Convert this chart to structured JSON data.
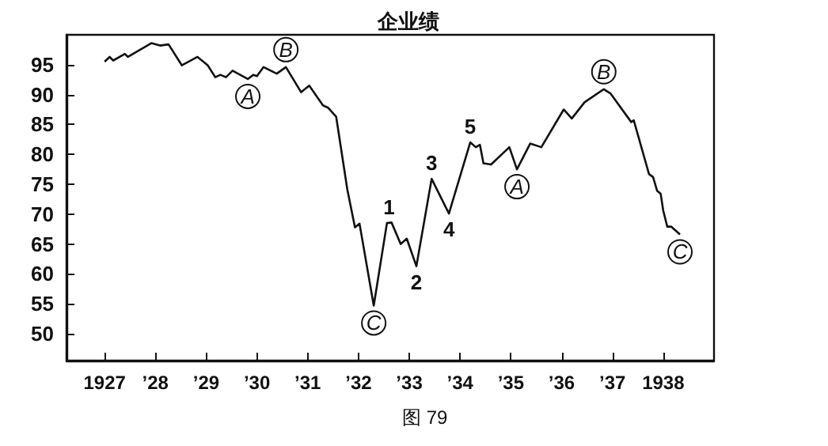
{
  "chart_data": {
    "type": "line",
    "title": "企业绩",
    "x": [
      1927.0,
      1927.1,
      1927.17,
      1927.4,
      1927.46,
      1927.92,
      1928.09,
      1928.26,
      1928.52,
      1928.83,
      1929.03,
      1929.18,
      1929.28,
      1929.39,
      1929.52,
      1929.82,
      1929.93,
      1930.0,
      1930.13,
      1930.39,
      1930.57,
      1930.87,
      1931.03,
      1931.3,
      1931.4,
      1931.56,
      1931.78,
      1931.93,
      1932.02,
      1932.3,
      1932.56,
      1932.65,
      1932.83,
      1932.95,
      1933.14,
      1933.44,
      1933.78,
      1934.2,
      1934.31,
      1934.39,
      1934.46,
      1934.61,
      1934.97,
      1935.12,
      1935.38,
      1935.6,
      1936.04,
      1936.2,
      1936.45,
      1936.83,
      1936.96,
      1937.37,
      1937.42,
      1937.72,
      1937.8,
      1937.88,
      1937.95,
      1938.0,
      1938.08,
      1938.16,
      1938.33
    ],
    "series": [
      {
        "color": "#111111",
        "values": [
          95.5,
          96.3,
          95.7,
          96.8,
          96.3,
          98.6,
          98.2,
          98.4,
          94.9,
          96.3,
          94.9,
          92.9,
          93.3,
          92.9,
          94.0,
          92.6,
          93.3,
          93.1,
          94.6,
          93.5,
          94.6,
          90.4,
          91.5,
          88.2,
          87.8,
          86.3,
          74.1,
          67.8,
          68.4,
          54.7,
          68.5,
          68.6,
          65.0,
          65.9,
          61.3,
          75.9,
          70.1,
          82.0,
          81.2,
          81.6,
          78.5,
          78.3,
          81.2,
          77.5,
          81.8,
          81.2,
          87.5,
          86.0,
          88.7,
          90.9,
          90.2,
          85.4,
          85.7,
          76.7,
          76.2,
          73.9,
          73.4,
          70.6,
          67.9,
          67.9,
          66.6
        ]
      }
    ],
    "xlim": [
      1926.25,
      1939
    ],
    "xticks": [
      1927,
      {
        "value": 1928,
        "label": "’28"
      },
      {
        "value": 1929,
        "label": "’29"
      },
      {
        "value": 1930,
        "label": "’30"
      },
      {
        "value": 1931,
        "label": "’31"
      },
      {
        "value": 1932,
        "label": "’32"
      },
      {
        "value": 1933,
        "label": "’33"
      },
      {
        "value": 1934,
        "label": "’34"
      },
      {
        "value": 1935,
        "label": "’35"
      },
      {
        "value": 1936,
        "label": "’36"
      },
      {
        "value": 1937,
        "label": "’37"
      },
      1938
    ],
    "ylim": [
      45.5,
      100
    ],
    "yticks": [
      50,
      55,
      60,
      65,
      70,
      75,
      80,
      85,
      90,
      95
    ],
    "marker": "none",
    "line_style": "solid",
    "annotations": [
      {
        "text": "A",
        "x": 1929.82,
        "y": 92.6
      },
      {
        "text": "B",
        "x": 1930.57,
        "y": 94.6
      },
      {
        "text": "C",
        "x": 1932.3,
        "y": 54.7
      },
      {
        "text": "1",
        "x": 1932.6,
        "y": 68.5
      },
      {
        "text": "2",
        "x": 1933.14,
        "y": 61.3
      },
      {
        "text": "3",
        "x": 1933.44,
        "y": 75.9
      },
      {
        "text": "4",
        "x": 1933.78,
        "y": 70.1
      },
      {
        "text": "5",
        "x": 1934.2,
        "y": 82.0
      },
      {
        "text": "A",
        "x": 1935.12,
        "y": 77.5
      },
      {
        "text": "B",
        "x": 1936.83,
        "y": 90.9
      },
      {
        "text": "C",
        "x": 1938.33,
        "y": 66.6
      },
      "图 79"
    ]
  }
}
